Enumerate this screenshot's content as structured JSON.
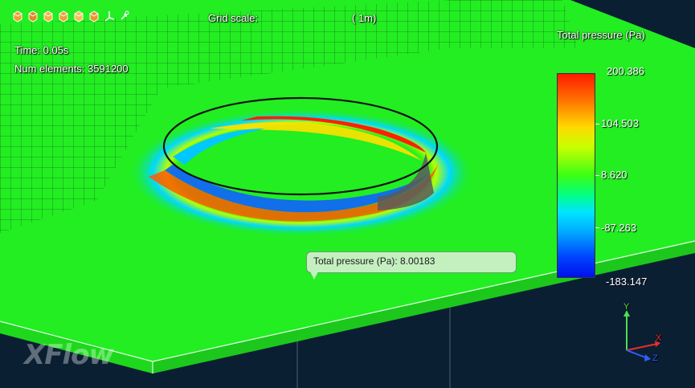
{
  "toolbar": {
    "icons": [
      "view-front-cube-icon",
      "view-back-cube-icon",
      "view-left-cube-icon",
      "view-right-cube-icon",
      "view-top-cube-icon",
      "view-bottom-cube-icon",
      "axes-icon",
      "rotate-axes-icon"
    ]
  },
  "hud": {
    "grid_scale_label": "Grid scale:",
    "grid_scale_value": "(   1m)",
    "time": "Time: 0.05s",
    "num_elements": "Num elements: 3591200"
  },
  "legend": {
    "title": "Total pressure (Pa)",
    "max": "200.386",
    "v2": "104.503",
    "mid": "8.620",
    "v4": "-87.263",
    "min": "-183.147"
  },
  "tooltip": {
    "text": "Total pressure (Pa): 8.00183"
  },
  "axes": {
    "x": "X",
    "y": "Y",
    "z": "Z"
  },
  "logo": {
    "text": "XFlow"
  },
  "colors": {
    "plate": "#22ee22",
    "background": "#0b1f33",
    "high_pressure": "#ff1a00",
    "low_pressure": "#0010ee"
  }
}
